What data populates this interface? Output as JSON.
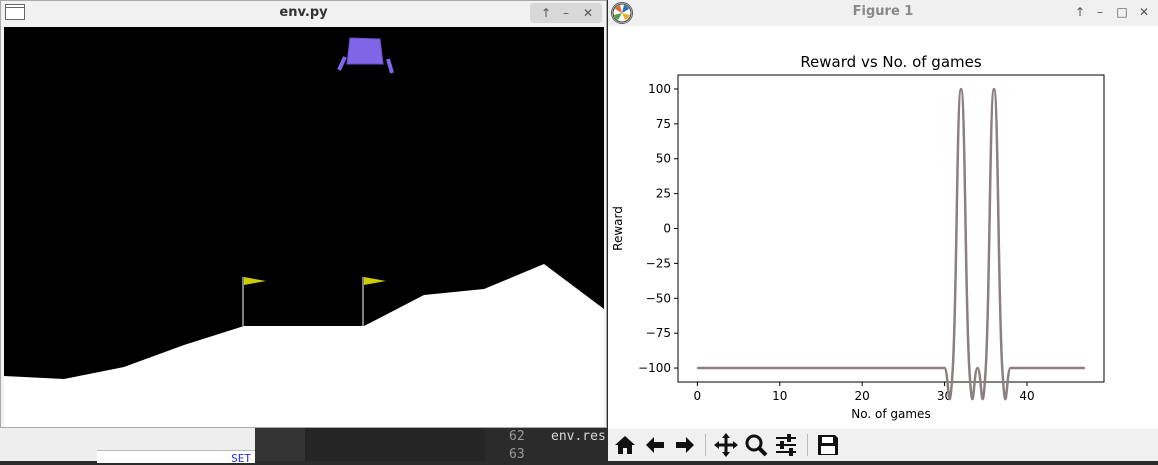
{
  "background_editor": {
    "set_label": "SET",
    "lines": [
      {
        "num": "62",
        "text": "env.res"
      },
      {
        "num": "63",
        "text": ""
      }
    ]
  },
  "env_window": {
    "title": "env.py",
    "buttons": {
      "up": "↑",
      "minimize": "–",
      "close": "✕"
    },
    "game": {
      "sky": "#000000",
      "terrain": "#ffffff",
      "lander": "#8066e6",
      "flag": "#cccc00"
    }
  },
  "figure_window": {
    "title": "Figure 1",
    "buttons": {
      "up": "↑",
      "minimize": "–",
      "maximize": "□",
      "close": "✕"
    },
    "toolbar": [
      "home-icon",
      "back-icon",
      "forward-icon",
      "pan-icon",
      "zoom-icon",
      "configure-icon",
      "save-icon"
    ]
  },
  "chart_data": {
    "type": "line",
    "title": "Reward vs No. of games",
    "xlabel": "No. of games",
    "ylabel": "Reward",
    "xlim": [
      -2.35,
      49.35
    ],
    "ylim": [
      -110,
      110
    ],
    "xticks": [
      0,
      10,
      20,
      30,
      40
    ],
    "yticks": [
      -100,
      -75,
      -50,
      -25,
      0,
      25,
      50,
      75,
      100
    ],
    "grid": false,
    "color": "#8c7f7f",
    "x": [
      0,
      1,
      2,
      3,
      4,
      5,
      6,
      7,
      8,
      9,
      10,
      11,
      12,
      13,
      14,
      15,
      16,
      17,
      18,
      19,
      20,
      21,
      22,
      23,
      24,
      25,
      26,
      27,
      28,
      29,
      30,
      31,
      32,
      33,
      34,
      35,
      36,
      37,
      38,
      39,
      40,
      41,
      42,
      43,
      44,
      45,
      46,
      47
    ],
    "values": [
      -100,
      -100,
      -100,
      -100,
      -100,
      -100,
      -100,
      -100,
      -100,
      -100,
      -100,
      -100,
      -100,
      -100,
      -100,
      -100,
      -100,
      -100,
      -100,
      -100,
      -100,
      -100,
      -100,
      -100,
      -100,
      -100,
      -100,
      -100,
      -100,
      -100,
      -100,
      -100,
      100,
      -100,
      -100,
      -100,
      100,
      -100,
      -100,
      -100,
      -100,
      -100,
      -100,
      -100,
      -100,
      -100,
      -100,
      -100
    ]
  }
}
